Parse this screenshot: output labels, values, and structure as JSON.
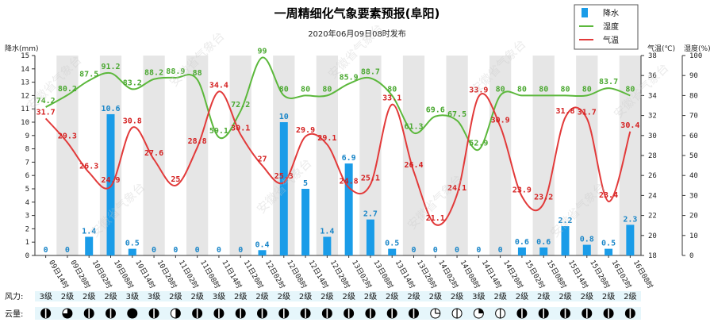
{
  "chart_data": {
    "type": "bar",
    "title": "一周精细化气象要素预报(阜阳)",
    "subtitle": "2020年06月09日08时发布",
    "left_axis": {
      "label": "降水(mm)",
      "range": [
        0,
        15
      ],
      "ticks": [
        0,
        1,
        2,
        3,
        4,
        5,
        6,
        7,
        8,
        9,
        10,
        11,
        12,
        13,
        14,
        15
      ]
    },
    "temp_axis": {
      "label": "气温(℃)",
      "range": [
        18,
        38
      ],
      "ticks": [
        18,
        20,
        22,
        24,
        26,
        28,
        30,
        32,
        34,
        36,
        38
      ]
    },
    "humidity_axis": {
      "label": "湿度(%)",
      "range": [
        0,
        100
      ],
      "ticks": [
        0,
        10,
        20,
        30,
        40,
        50,
        60,
        70,
        80,
        90,
        100
      ]
    },
    "categories": [
      "09日14时",
      "09日20时",
      "10日02时",
      "10日08时",
      "10日14时",
      "10日20时",
      "11日02时",
      "11日08时",
      "11日14时",
      "11日20时",
      "12日02时",
      "12日08时",
      "12日14时",
      "12日20时",
      "13日02时",
      "13日08时",
      "13日14时",
      "13日20时",
      "14日02时",
      "14日08时",
      "14日14时",
      "14日20时",
      "15日02时",
      "15日08时",
      "15日14时",
      "15日20时",
      "16日02时",
      "16日08时"
    ],
    "series": [
      {
        "name": "降水",
        "type": "bar",
        "axis": "left",
        "color": "#1a9ce8",
        "values": [
          0,
          0,
          1.4,
          10.6,
          0.5,
          0,
          0,
          0,
          0,
          0,
          0.4,
          10,
          5,
          1.4,
          6.9,
          2.7,
          0.5,
          0,
          0,
          0,
          0,
          0,
          0.6,
          0.6,
          2.2,
          0.8,
          0.5,
          2.3
        ]
      },
      {
        "name": "湿度",
        "type": "line",
        "axis": "humidity",
        "color": "#5cb83c",
        "values": [
          74.2,
          80.2,
          87.5,
          91.2,
          83.2,
          88.2,
          88.9,
          88,
          59.1,
          72.2,
          99,
          80,
          80,
          80,
          85.9,
          88.7,
          80,
          61.3,
          69.6,
          67.5,
          52.9,
          80,
          80,
          80,
          80,
          80,
          83.7,
          80
        ]
      },
      {
        "name": "气温",
        "type": "line",
        "axis": "temp",
        "color": "#e23a3a",
        "values": [
          31.7,
          29.3,
          26.3,
          24.9,
          30.8,
          27.6,
          25,
          28.8,
          34.4,
          30.1,
          27,
          25.3,
          29.9,
          29.1,
          24.8,
          25.1,
          33.1,
          26.4,
          21.1,
          24.1,
          33.9,
          30.9,
          23.9,
          23.2,
          31.8,
          31.7,
          23.4,
          30.4
        ]
      }
    ],
    "legend": {
      "placement": "top-right",
      "items": [
        "降水",
        "湿度",
        "气温"
      ]
    },
    "grid": false,
    "rows": {
      "wind": {
        "label": "风力:",
        "values": [
          "3级",
          "2级",
          "2级",
          "2级",
          "3级",
          "3级",
          "2级",
          "2级",
          "3级",
          "2级",
          "2级",
          "2级",
          "2级",
          "2级",
          "2级",
          "2级",
          "2级",
          "2级",
          "2级",
          "2级",
          "3级",
          "2级",
          "2级",
          "2级",
          "2级",
          "2级",
          "2级",
          "2级"
        ]
      },
      "cloud": {
        "label": "云量:",
        "icons": [
          "overcast",
          "mostly-cloudy",
          "overcast",
          "overcast",
          "full",
          "overcast",
          "partly-cloudy",
          "overcast",
          "overcast",
          "overcast",
          "overcast",
          "overcast",
          "overcast",
          "overcast",
          "overcast",
          "overcast",
          "overcast",
          "overcast",
          "mostly-clear",
          "half",
          "quarter",
          "half",
          "overcast",
          "overcast",
          "overcast",
          "overcast",
          "overcast",
          "overcast"
        ]
      }
    },
    "watermark": "安徽省气象台"
  }
}
